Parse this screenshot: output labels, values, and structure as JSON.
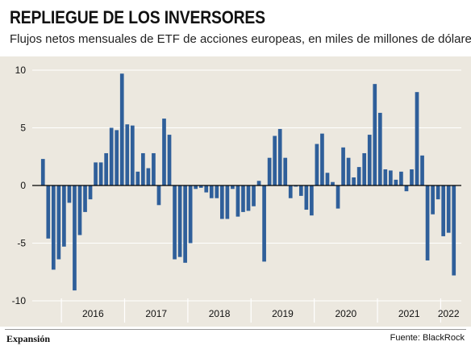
{
  "title": "REPLIEGUE DE LOS INVERSORES",
  "subtitle": "Flujos netos mensuales de ETF de acciones europeas, en miles de millones de dólares",
  "brand": "Expansión",
  "source": "Fuente: BlackRock",
  "colors": {
    "bar": "#2f5f9a",
    "background": "#ece8df",
    "axis": "#000000",
    "grid": "#ffffff"
  },
  "chart_data": {
    "type": "bar",
    "title": "REPLIEGUE DE LOS INVERSORES",
    "subtitle": "Flujos netos mensuales de ETF de acciones europeas, en miles de millones de dólares",
    "xlabel": "",
    "ylabel": "",
    "ylim": [
      -10,
      10
    ],
    "yticks": [
      10,
      5,
      0,
      -5,
      -10
    ],
    "xticks": [
      "2016",
      "2017",
      "2018",
      "2019",
      "2020",
      "2021",
      "2022"
    ],
    "grid": true,
    "series": [
      {
        "values": [
          2.3,
          -4.6,
          -7.3,
          -6.4,
          -5.3,
          -1.5,
          -9.1,
          -4.3,
          -2.3,
          -1.2,
          2.0,
          2.0,
          2.8,
          5.0,
          4.8,
          9.7,
          5.3,
          5.2,
          1.2,
          2.8,
          1.5,
          2.8,
          -1.7,
          5.8,
          4.4,
          -6.4,
          -6.2,
          -6.7,
          -5.0,
          -0.3,
          -0.2,
          -0.6,
          -1.1,
          -1.1,
          -2.9,
          -2.9,
          -0.3,
          -2.7,
          -2.3,
          -2.2,
          -1.8,
          0.4,
          -6.6,
          2.4,
          4.3,
          4.9,
          2.4,
          -1.1,
          -0.1,
          -0.9,
          -2.1,
          -2.6,
          3.6,
          4.5,
          1.1,
          0.3,
          -2.0,
          3.3,
          2.4,
          0.7,
          1.6,
          2.8,
          4.4,
          8.8,
          6.3,
          1.4,
          1.3,
          0.5,
          1.2,
          -0.5,
          1.4,
          8.1,
          2.6,
          -6.5,
          -2.5,
          -1.2,
          -4.4,
          -4.1,
          -7.8
        ]
      }
    ]
  }
}
